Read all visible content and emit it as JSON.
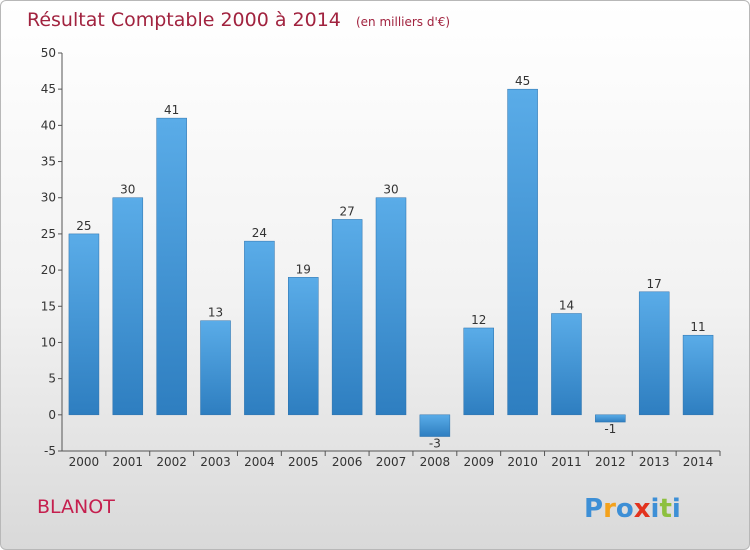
{
  "chart_data": {
    "type": "bar",
    "title": "Résultat Comptable 2000 à 2014",
    "subtitle": "(en milliers d'€)",
    "categories": [
      "2000",
      "2001",
      "2002",
      "2003",
      "2004",
      "2005",
      "2006",
      "2007",
      "2008",
      "2009",
      "2010",
      "2011",
      "2012",
      "2013",
      "2014"
    ],
    "values": [
      25,
      30,
      41,
      13,
      24,
      19,
      27,
      30,
      -3,
      12,
      45,
      14,
      -1,
      17,
      11
    ],
    "value_labels": [
      "25",
      "30",
      "41",
      "13",
      "24",
      "19",
      "27",
      "30",
      "-3",
      "12",
      "45",
      "14",
      "-1",
      "17",
      "11"
    ],
    "ylim": [
      -5,
      50
    ],
    "yticks": [
      "-5",
      "0",
      "5",
      "10",
      "15",
      "20",
      "25",
      "30",
      "35",
      "40",
      "45",
      "50"
    ],
    "grid": false,
    "bar_color_top": "#5aace8",
    "bar_color_bottom": "#2e7ec0"
  },
  "footer": {
    "place": "BLANOT",
    "logo": {
      "letters": [
        "P",
        "r",
        "o",
        "x",
        "i",
        "t",
        "i"
      ],
      "colors": [
        "#3d8fd6",
        "#f4a21c",
        "#3d8fd6",
        "#e2331e",
        "#3d8fd6",
        "#8dc03f",
        "#3d8fd6"
      ]
    }
  }
}
